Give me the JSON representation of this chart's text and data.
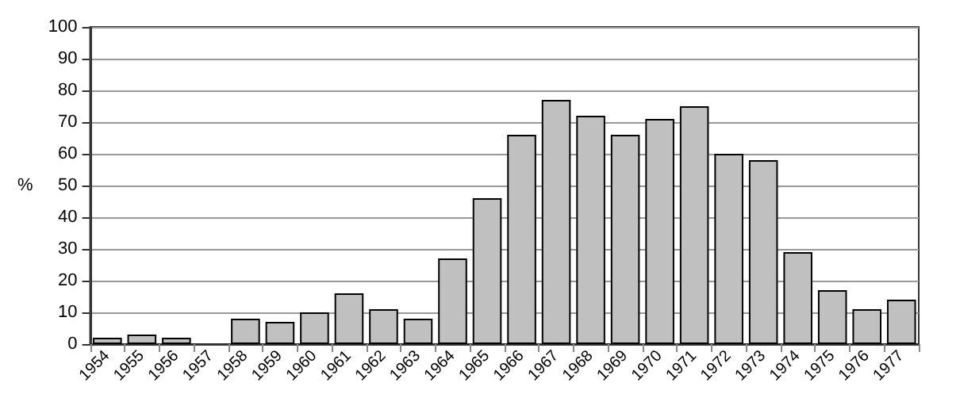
{
  "chart_data": {
    "type": "bar",
    "ylabel": "%",
    "categories": [
      "1954",
      "1955",
      "1956",
      "1957",
      "1958",
      "1959",
      "1960",
      "1961",
      "1962",
      "1963",
      "1964",
      "1965",
      "1966",
      "1967",
      "1968",
      "1969",
      "1970",
      "1971",
      "1972",
      "1973",
      "1974",
      "1975",
      "1976",
      "1977"
    ],
    "values": [
      2,
      3,
      2,
      0,
      8,
      7,
      10,
      16,
      11,
      8,
      27,
      46,
      66,
      77,
      72,
      66,
      71,
      75,
      60,
      58,
      29,
      17,
      11,
      14
    ],
    "color": "#c0c0c0",
    "ylim": [
      0,
      100
    ],
    "yticks": [
      0,
      10,
      20,
      30,
      40,
      50,
      60,
      70,
      80,
      90,
      100
    ],
    "grid": "y"
  }
}
